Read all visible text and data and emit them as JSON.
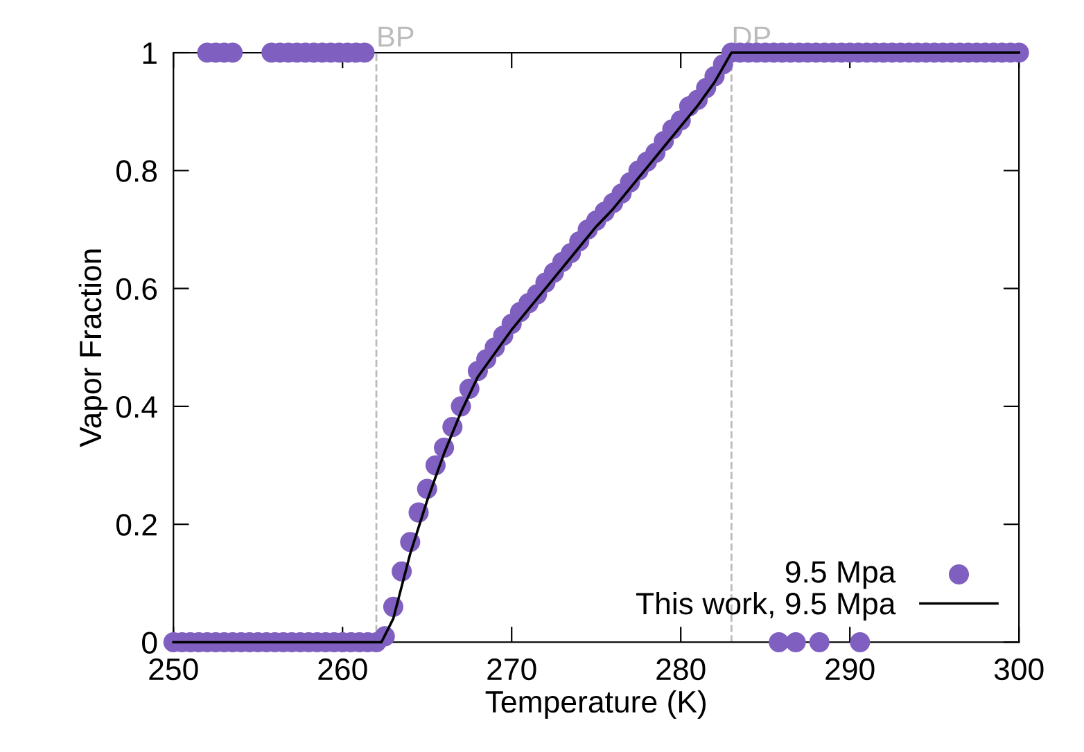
{
  "chart_data": {
    "type": "scatter",
    "xlabel": "Temperature (K)",
    "ylabel": "Vapor Fraction",
    "xlim": [
      250,
      300
    ],
    "xticks": [
      250,
      260,
      270,
      280,
      290,
      300
    ],
    "ylim": [
      0,
      1
    ],
    "yticks": [
      0,
      {
        "value": 0.2,
        "label": "0.2"
      },
      {
        "value": 0.4,
        "label": "0.4"
      },
      {
        "value": 0.6,
        "label": "0.6"
      },
      {
        "value": 0.8,
        "label": "0.8"
      },
      1
    ],
    "grid": false,
    "legend": "bottom right",
    "series": [
      {
        "name": "9.5 Mpa",
        "marker": "circle",
        "color": "#7f5fbf",
        "x": [
          250,
          250.5,
          251,
          251.5,
          252,
          252.5,
          253,
          253.5,
          254,
          254.5,
          255,
          255.5,
          256,
          256.5,
          257,
          257.5,
          258,
          258.5,
          259,
          259.5,
          260,
          260.5,
          261,
          261.5,
          262,
          262.5,
          263,
          263.5,
          264,
          264.5,
          265,
          265.5,
          266,
          266.5,
          267,
          267.5,
          268,
          268.5,
          269,
          269.5,
          270,
          270.5,
          271,
          271.5,
          272,
          272.5,
          273,
          273.5,
          274,
          274.5,
          275,
          275.5,
          276,
          276.5,
          277,
          277.5,
          278,
          278.5,
          279,
          279.5,
          280,
          280.5,
          281,
          281.5,
          282,
          282.5,
          283,
          283.5,
          284,
          284.5,
          285,
          285.5,
          286,
          286.5,
          287,
          287.5,
          288,
          288.5,
          289,
          289.5,
          290,
          290.5,
          291,
          291.5,
          292,
          292.5,
          293,
          293.5,
          294,
          294.5,
          295,
          295.5,
          296,
          296.5,
          297,
          297.5,
          298,
          298.5,
          299,
          299.5,
          300,
          252,
          252.5,
          253,
          253.5,
          255.8,
          256.3,
          256.8,
          257.3,
          257.8,
          258.3,
          258.8,
          259.3,
          259.8,
          260.3,
          260.8,
          261.3,
          285.8,
          286.8,
          288.2,
          290.6
        ],
        "values": [
          0,
          0,
          0,
          0,
          0,
          0,
          0,
          0,
          0,
          0,
          0,
          0,
          0,
          0,
          0,
          0,
          0,
          0,
          0,
          0,
          0,
          0,
          0,
          0,
          0,
          0.01,
          0.06,
          0.12,
          0.17,
          0.22,
          0.26,
          0.3,
          0.33,
          0.365,
          0.4,
          0.43,
          0.46,
          0.48,
          0.5,
          0.52,
          0.54,
          0.56,
          0.575,
          0.59,
          0.61,
          0.627,
          0.645,
          0.66,
          0.68,
          0.7,
          0.715,
          0.73,
          0.745,
          0.761,
          0.78,
          0.8,
          0.815,
          0.83,
          0.85,
          0.87,
          0.885,
          0.909,
          0.92,
          0.94,
          0.96,
          0.98,
          1,
          1,
          1,
          1,
          1,
          1,
          1,
          1,
          1,
          1,
          1,
          1,
          1,
          1,
          1,
          1,
          1,
          1,
          1,
          1,
          1,
          1,
          1,
          1,
          1,
          1,
          1,
          1,
          1,
          1,
          1,
          1,
          1,
          1,
          1,
          1,
          1,
          1,
          1,
          1,
          1,
          1,
          1,
          1,
          1,
          1,
          1,
          1,
          1,
          1,
          1,
          0,
          0,
          0,
          0
        ]
      },
      {
        "name": "This work, 9.5 Mpa",
        "type": "line",
        "marker": "none",
        "line_style": "solid",
        "color": "#000000",
        "x": [
          250,
          262.3,
          263,
          264,
          265,
          266,
          267,
          268,
          269,
          270,
          271,
          272,
          273,
          274,
          275,
          276,
          277,
          278,
          279,
          280,
          281,
          282,
          283,
          300
        ],
        "values": [
          0,
          0,
          0.04,
          0.15,
          0.24,
          0.32,
          0.39,
          0.45,
          0.49,
          0.53,
          0.565,
          0.6,
          0.635,
          0.67,
          0.705,
          0.735,
          0.77,
          0.805,
          0.84,
          0.875,
          0.91,
          0.95,
          1,
          1
        ]
      }
    ],
    "ref_lines": [
      {
        "axis": "x",
        "value": 262,
        "label": "BP",
        "color": "#bbbbbb",
        "line_style": "dashed"
      },
      {
        "axis": "x",
        "value": 283,
        "label": "DP",
        "color": "#bbbbbb",
        "line_style": "dashed"
      }
    ]
  }
}
